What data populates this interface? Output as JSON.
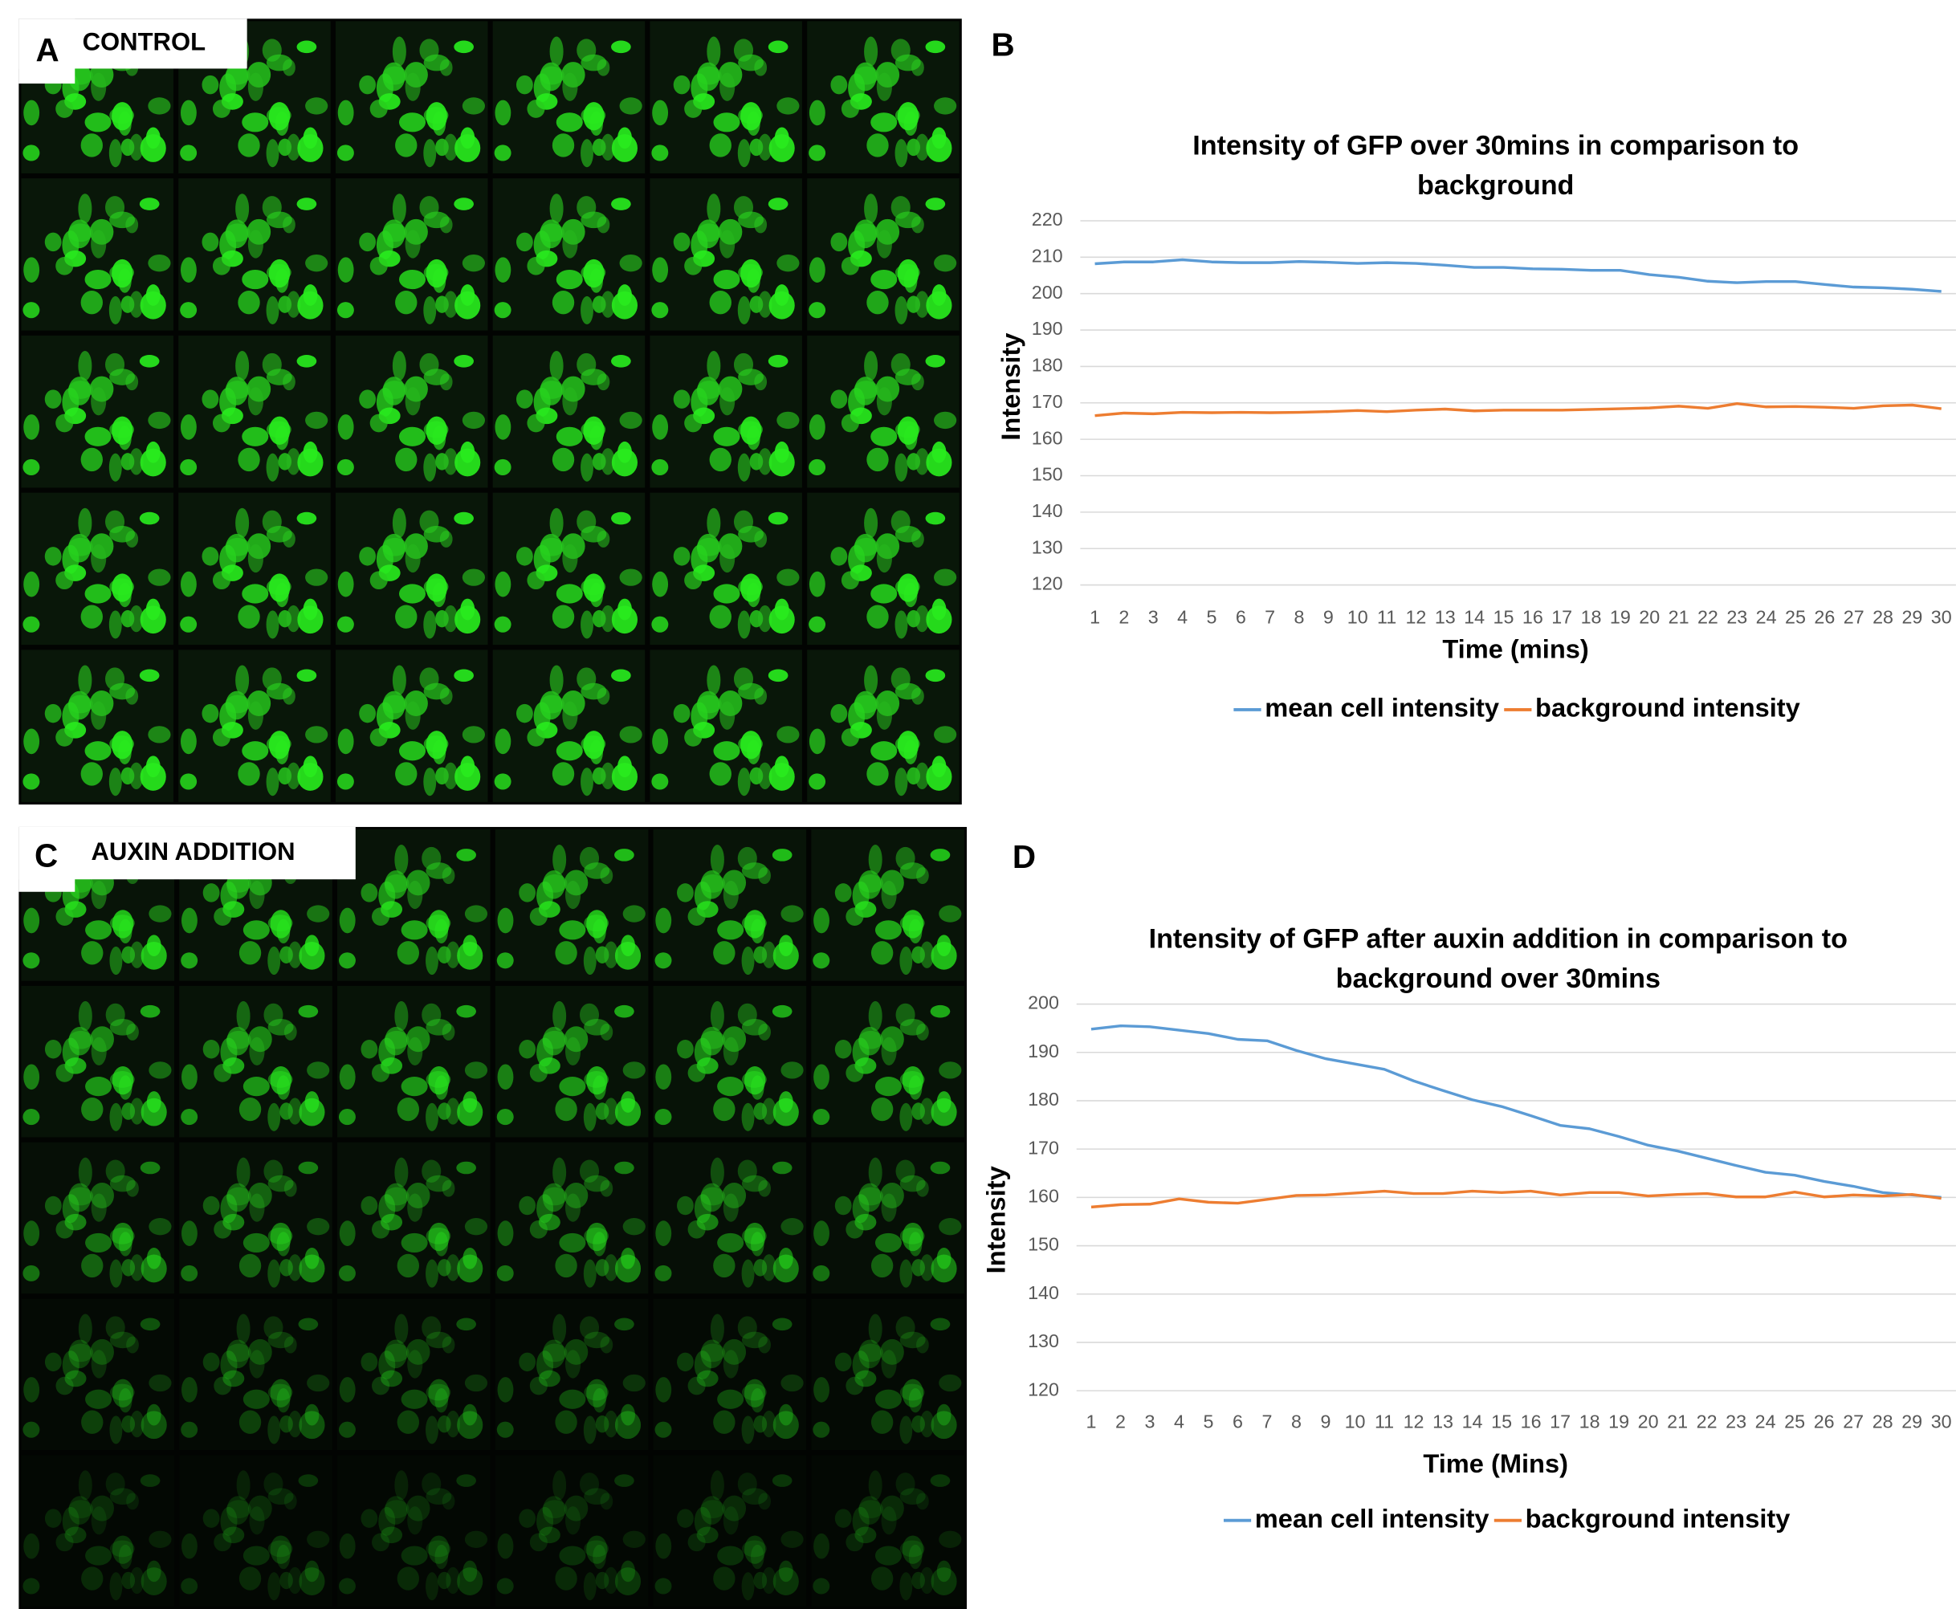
{
  "panels": [
    {
      "letter": "A",
      "caption": "CONTROL"
    },
    {
      "letter": "C",
      "caption": "AUXIN ADDITION"
    }
  ],
  "chart_data": [
    {
      "type": "line",
      "panel": "B",
      "title": [
        "Intensity of GFP over 30mins in comparison to",
        "background"
      ],
      "x_label": "Time (mins)",
      "y_label": "Intensity",
      "categories": [
        1,
        2,
        3,
        4,
        5,
        6,
        7,
        8,
        9,
        10,
        11,
        12,
        13,
        14,
        15,
        16,
        17,
        18,
        19,
        20,
        21,
        22,
        23,
        24,
        25,
        26,
        27,
        28,
        29,
        30
      ],
      "ylim": [
        120,
        220
      ],
      "yticks": [
        120,
        130,
        140,
        150,
        160,
        170,
        180,
        190,
        200,
        210,
        220
      ],
      "grid": true,
      "legend": "bottom",
      "series": [
        {
          "name": "mean cell intensity",
          "color": "#5b9bd5",
          "values": [
            208.2,
            208.7,
            208.7,
            209.3,
            208.7,
            208.5,
            208.5,
            208.8,
            208.6,
            208.3,
            208.5,
            208.3,
            207.8,
            207.2,
            207.2,
            206.8,
            206.7,
            206.4,
            206.4,
            205.2,
            204.5,
            203.4,
            203.0,
            203.3,
            203.3,
            202.5,
            201.8,
            201.6,
            201.2,
            200.6
          ]
        },
        {
          "name": "background intensity",
          "color": "#ed7d31",
          "values": [
            166.5,
            167.2,
            167.0,
            167.4,
            167.3,
            167.4,
            167.3,
            167.4,
            167.6,
            167.9,
            167.6,
            168.0,
            168.3,
            167.8,
            168.0,
            168.0,
            168.0,
            168.2,
            168.4,
            168.6,
            169.1,
            168.5,
            169.8,
            168.9,
            169.0,
            168.8,
            168.5,
            169.2,
            169.4,
            168.4
          ]
        }
      ]
    },
    {
      "type": "line",
      "panel": "D",
      "title": [
        "Intensity of GFP after auxin addition in comparison to",
        "background over 30mins"
      ],
      "x_label": "Time (Mins)",
      "y_label": "Intensity",
      "categories": [
        1,
        2,
        3,
        4,
        5,
        6,
        7,
        8,
        9,
        10,
        11,
        12,
        13,
        14,
        15,
        16,
        17,
        18,
        19,
        20,
        21,
        22,
        23,
        24,
        25,
        26,
        27,
        28,
        29,
        30
      ],
      "ylim": [
        120,
        200
      ],
      "yticks": [
        120,
        130,
        140,
        150,
        160,
        170,
        180,
        190,
        200
      ],
      "grid": true,
      "legend": "bottom",
      "series": [
        {
          "name": "mean cell intensity",
          "color": "#5b9bd5",
          "values": [
            194.8,
            195.5,
            195.3,
            194.6,
            193.9,
            192.7,
            192.4,
            190.4,
            188.7,
            187.6,
            186.5,
            184.1,
            182.1,
            180.2,
            178.8,
            176.9,
            174.9,
            174.2,
            172.6,
            170.8,
            169.6,
            168.1,
            166.6,
            165.2,
            164.6,
            163.3,
            162.3,
            161.0,
            160.5,
            160.0
          ]
        },
        {
          "name": "background intensity",
          "color": "#ed7d31",
          "values": [
            158.0,
            158.5,
            158.6,
            159.7,
            159.0,
            158.8,
            159.6,
            160.4,
            160.5,
            160.9,
            161.3,
            160.8,
            160.8,
            161.3,
            161.0,
            161.3,
            160.5,
            161.0,
            161.0,
            160.3,
            160.6,
            160.8,
            160.1,
            160.1,
            161.1,
            160.1,
            160.5,
            160.3,
            160.6,
            159.8
          ]
        }
      ]
    }
  ]
}
